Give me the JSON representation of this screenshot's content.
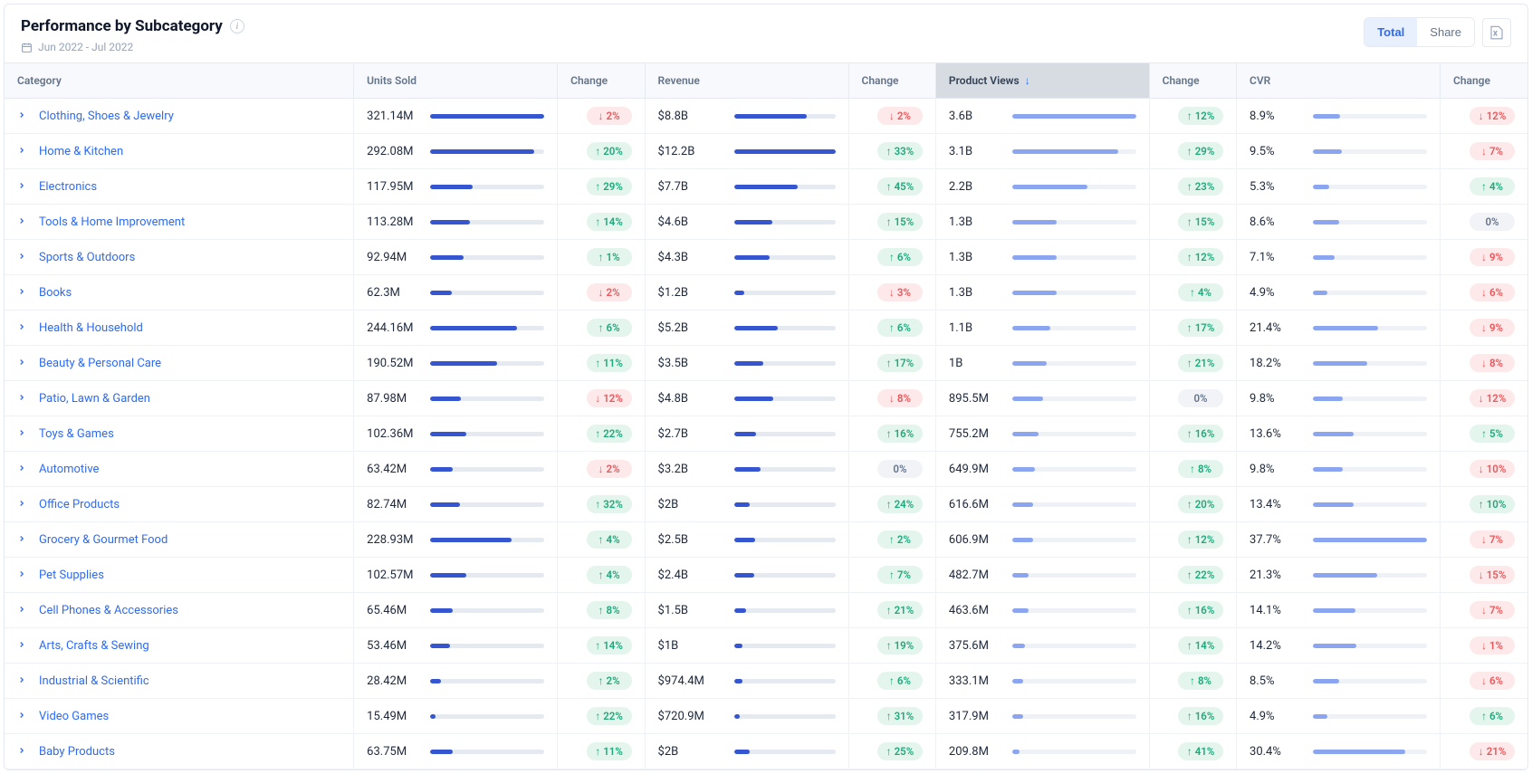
{
  "colors": {
    "bar_dark": "#3556d0",
    "bar_light": "#8ba5f0",
    "track": "#e5e9f0",
    "link": "#2f6bf0",
    "up_bg": "#e3f5ed",
    "up_fg": "#1ea97c",
    "down_bg": "#fde9e9",
    "down_fg": "#e8575b",
    "flat_bg": "#f1f3f7",
    "flat_fg": "#64748b"
  },
  "header": {
    "title": "Performance by Subcategory",
    "date_range": "Jun 2022 - Jul 2022",
    "total_label": "Total",
    "share_label": "Share"
  },
  "columns": {
    "category": "Category",
    "units_sold": "Units Sold",
    "change": "Change",
    "revenue": "Revenue",
    "product_views": "Product Views",
    "cvr": "CVR"
  },
  "sort": {
    "column": "product_views",
    "direction": "desc"
  },
  "rows": [
    {
      "category": "Clothing, Shoes & Jewelry",
      "units": "321.14M",
      "units_pct": 100,
      "units_chg": {
        "v": "2%",
        "d": "down"
      },
      "revenue": "$8.8B",
      "revenue_pct": 72,
      "revenue_chg": {
        "v": "2%",
        "d": "down"
      },
      "views": "3.6B",
      "views_pct": 100,
      "views_chg": {
        "v": "12%",
        "d": "up"
      },
      "cvr": "8.9%",
      "cvr_pct": 24,
      "cvr_chg": {
        "v": "12%",
        "d": "down"
      }
    },
    {
      "category": "Home & Kitchen",
      "units": "292.08M",
      "units_pct": 91,
      "units_chg": {
        "v": "20%",
        "d": "up"
      },
      "revenue": "$12.2B",
      "revenue_pct": 100,
      "revenue_chg": {
        "v": "33%",
        "d": "up"
      },
      "views": "3.1B",
      "views_pct": 86,
      "views_chg": {
        "v": "29%",
        "d": "up"
      },
      "cvr": "9.5%",
      "cvr_pct": 25,
      "cvr_chg": {
        "v": "7%",
        "d": "down"
      }
    },
    {
      "category": "Electronics",
      "units": "117.95M",
      "units_pct": 37,
      "units_chg": {
        "v": "29%",
        "d": "up"
      },
      "revenue": "$7.7B",
      "revenue_pct": 63,
      "revenue_chg": {
        "v": "45%",
        "d": "up"
      },
      "views": "2.2B",
      "views_pct": 61,
      "views_chg": {
        "v": "23%",
        "d": "up"
      },
      "cvr": "5.3%",
      "cvr_pct": 14,
      "cvr_chg": {
        "v": "4%",
        "d": "up"
      }
    },
    {
      "category": "Tools & Home Improvement",
      "units": "113.28M",
      "units_pct": 35,
      "units_chg": {
        "v": "14%",
        "d": "up"
      },
      "revenue": "$4.6B",
      "revenue_pct": 38,
      "revenue_chg": {
        "v": "15%",
        "d": "up"
      },
      "views": "1.3B",
      "views_pct": 36,
      "views_chg": {
        "v": "15%",
        "d": "up"
      },
      "cvr": "8.6%",
      "cvr_pct": 23,
      "cvr_chg": {
        "v": "0%",
        "d": "flat"
      }
    },
    {
      "category": "Sports & Outdoors",
      "units": "92.94M",
      "units_pct": 29,
      "units_chg": {
        "v": "1%",
        "d": "up"
      },
      "revenue": "$4.3B",
      "revenue_pct": 35,
      "revenue_chg": {
        "v": "6%",
        "d": "up"
      },
      "views": "1.3B",
      "views_pct": 36,
      "views_chg": {
        "v": "12%",
        "d": "up"
      },
      "cvr": "7.1%",
      "cvr_pct": 19,
      "cvr_chg": {
        "v": "9%",
        "d": "down"
      }
    },
    {
      "category": "Books",
      "units": "62.3M",
      "units_pct": 19,
      "units_chg": {
        "v": "2%",
        "d": "down"
      },
      "revenue": "$1.2B",
      "revenue_pct": 10,
      "revenue_chg": {
        "v": "3%",
        "d": "down"
      },
      "views": "1.3B",
      "views_pct": 36,
      "views_chg": {
        "v": "4%",
        "d": "up"
      },
      "cvr": "4.9%",
      "cvr_pct": 13,
      "cvr_chg": {
        "v": "6%",
        "d": "down"
      }
    },
    {
      "category": "Health & Household",
      "units": "244.16M",
      "units_pct": 76,
      "units_chg": {
        "v": "6%",
        "d": "up"
      },
      "revenue": "$5.2B",
      "revenue_pct": 43,
      "revenue_chg": {
        "v": "6%",
        "d": "up"
      },
      "views": "1.1B",
      "views_pct": 31,
      "views_chg": {
        "v": "17%",
        "d": "up"
      },
      "cvr": "21.4%",
      "cvr_pct": 57,
      "cvr_chg": {
        "v": "9%",
        "d": "down"
      }
    },
    {
      "category": "Beauty & Personal Care",
      "units": "190.52M",
      "units_pct": 59,
      "units_chg": {
        "v": "11%",
        "d": "up"
      },
      "revenue": "$3.5B",
      "revenue_pct": 29,
      "revenue_chg": {
        "v": "17%",
        "d": "up"
      },
      "views": "1B",
      "views_pct": 28,
      "views_chg": {
        "v": "21%",
        "d": "up"
      },
      "cvr": "18.2%",
      "cvr_pct": 48,
      "cvr_chg": {
        "v": "8%",
        "d": "down"
      }
    },
    {
      "category": "Patio, Lawn & Garden",
      "units": "87.98M",
      "units_pct": 27,
      "units_chg": {
        "v": "12%",
        "d": "down"
      },
      "revenue": "$4.8B",
      "revenue_pct": 39,
      "revenue_chg": {
        "v": "8%",
        "d": "down"
      },
      "views": "895.5M",
      "views_pct": 25,
      "views_chg": {
        "v": "0%",
        "d": "flat"
      },
      "cvr": "9.8%",
      "cvr_pct": 26,
      "cvr_chg": {
        "v": "12%",
        "d": "down"
      }
    },
    {
      "category": "Toys & Games",
      "units": "102.36M",
      "units_pct": 32,
      "units_chg": {
        "v": "22%",
        "d": "up"
      },
      "revenue": "$2.7B",
      "revenue_pct": 22,
      "revenue_chg": {
        "v": "16%",
        "d": "up"
      },
      "views": "755.2M",
      "views_pct": 21,
      "views_chg": {
        "v": "16%",
        "d": "up"
      },
      "cvr": "13.6%",
      "cvr_pct": 36,
      "cvr_chg": {
        "v": "5%",
        "d": "up"
      }
    },
    {
      "category": "Automotive",
      "units": "63.42M",
      "units_pct": 20,
      "units_chg": {
        "v": "2%",
        "d": "down"
      },
      "revenue": "$3.2B",
      "revenue_pct": 26,
      "revenue_chg": {
        "v": "0%",
        "d": "flat"
      },
      "views": "649.9M",
      "views_pct": 18,
      "views_chg": {
        "v": "8%",
        "d": "up"
      },
      "cvr": "9.8%",
      "cvr_pct": 26,
      "cvr_chg": {
        "v": "10%",
        "d": "down"
      }
    },
    {
      "category": "Office Products",
      "units": "82.74M",
      "units_pct": 26,
      "units_chg": {
        "v": "32%",
        "d": "up"
      },
      "revenue": "$2B",
      "revenue_pct": 16,
      "revenue_chg": {
        "v": "24%",
        "d": "up"
      },
      "views": "616.6M",
      "views_pct": 17,
      "views_chg": {
        "v": "20%",
        "d": "up"
      },
      "cvr": "13.4%",
      "cvr_pct": 36,
      "cvr_chg": {
        "v": "10%",
        "d": "up"
      }
    },
    {
      "category": "Grocery & Gourmet Food",
      "units": "228.93M",
      "units_pct": 71,
      "units_chg": {
        "v": "4%",
        "d": "up"
      },
      "revenue": "$2.5B",
      "revenue_pct": 21,
      "revenue_chg": {
        "v": "2%",
        "d": "up"
      },
      "views": "606.9M",
      "views_pct": 17,
      "views_chg": {
        "v": "12%",
        "d": "up"
      },
      "cvr": "37.7%",
      "cvr_pct": 100,
      "cvr_chg": {
        "v": "7%",
        "d": "down"
      }
    },
    {
      "category": "Pet Supplies",
      "units": "102.57M",
      "units_pct": 32,
      "units_chg": {
        "v": "4%",
        "d": "up"
      },
      "revenue": "$2.4B",
      "revenue_pct": 20,
      "revenue_chg": {
        "v": "7%",
        "d": "up"
      },
      "views": "482.7M",
      "views_pct": 13,
      "views_chg": {
        "v": "22%",
        "d": "up"
      },
      "cvr": "21.3%",
      "cvr_pct": 56,
      "cvr_chg": {
        "v": "15%",
        "d": "down"
      }
    },
    {
      "category": "Cell Phones & Accessories",
      "units": "65.46M",
      "units_pct": 20,
      "units_chg": {
        "v": "8%",
        "d": "up"
      },
      "revenue": "$1.5B",
      "revenue_pct": 12,
      "revenue_chg": {
        "v": "21%",
        "d": "up"
      },
      "views": "463.6M",
      "views_pct": 13,
      "views_chg": {
        "v": "16%",
        "d": "up"
      },
      "cvr": "14.1%",
      "cvr_pct": 37,
      "cvr_chg": {
        "v": "7%",
        "d": "down"
      }
    },
    {
      "category": "Arts, Crafts & Sewing",
      "units": "53.46M",
      "units_pct": 17,
      "units_chg": {
        "v": "14%",
        "d": "up"
      },
      "revenue": "$1B",
      "revenue_pct": 8,
      "revenue_chg": {
        "v": "19%",
        "d": "up"
      },
      "views": "375.6M",
      "views_pct": 10,
      "views_chg": {
        "v": "14%",
        "d": "up"
      },
      "cvr": "14.2%",
      "cvr_pct": 38,
      "cvr_chg": {
        "v": "1%",
        "d": "down"
      }
    },
    {
      "category": "Industrial & Scientific",
      "units": "28.42M",
      "units_pct": 9,
      "units_chg": {
        "v": "2%",
        "d": "up"
      },
      "revenue": "$974.4M",
      "revenue_pct": 8,
      "revenue_chg": {
        "v": "6%",
        "d": "up"
      },
      "views": "333.1M",
      "views_pct": 9,
      "views_chg": {
        "v": "8%",
        "d": "up"
      },
      "cvr": "8.5%",
      "cvr_pct": 23,
      "cvr_chg": {
        "v": "6%",
        "d": "down"
      }
    },
    {
      "category": "Video Games",
      "units": "15.49M",
      "units_pct": 5,
      "units_chg": {
        "v": "22%",
        "d": "up"
      },
      "revenue": "$720.9M",
      "revenue_pct": 6,
      "revenue_chg": {
        "v": "31%",
        "d": "up"
      },
      "views": "317.9M",
      "views_pct": 9,
      "views_chg": {
        "v": "16%",
        "d": "up"
      },
      "cvr": "4.9%",
      "cvr_pct": 13,
      "cvr_chg": {
        "v": "6%",
        "d": "up"
      }
    },
    {
      "category": "Baby Products",
      "units": "63.75M",
      "units_pct": 20,
      "units_chg": {
        "v": "11%",
        "d": "up"
      },
      "revenue": "$2B",
      "revenue_pct": 16,
      "revenue_chg": {
        "v": "25%",
        "d": "up"
      },
      "views": "209.8M",
      "views_pct": 6,
      "views_chg": {
        "v": "41%",
        "d": "up"
      },
      "cvr": "30.4%",
      "cvr_pct": 81,
      "cvr_chg": {
        "v": "21%",
        "d": "down"
      }
    }
  ]
}
